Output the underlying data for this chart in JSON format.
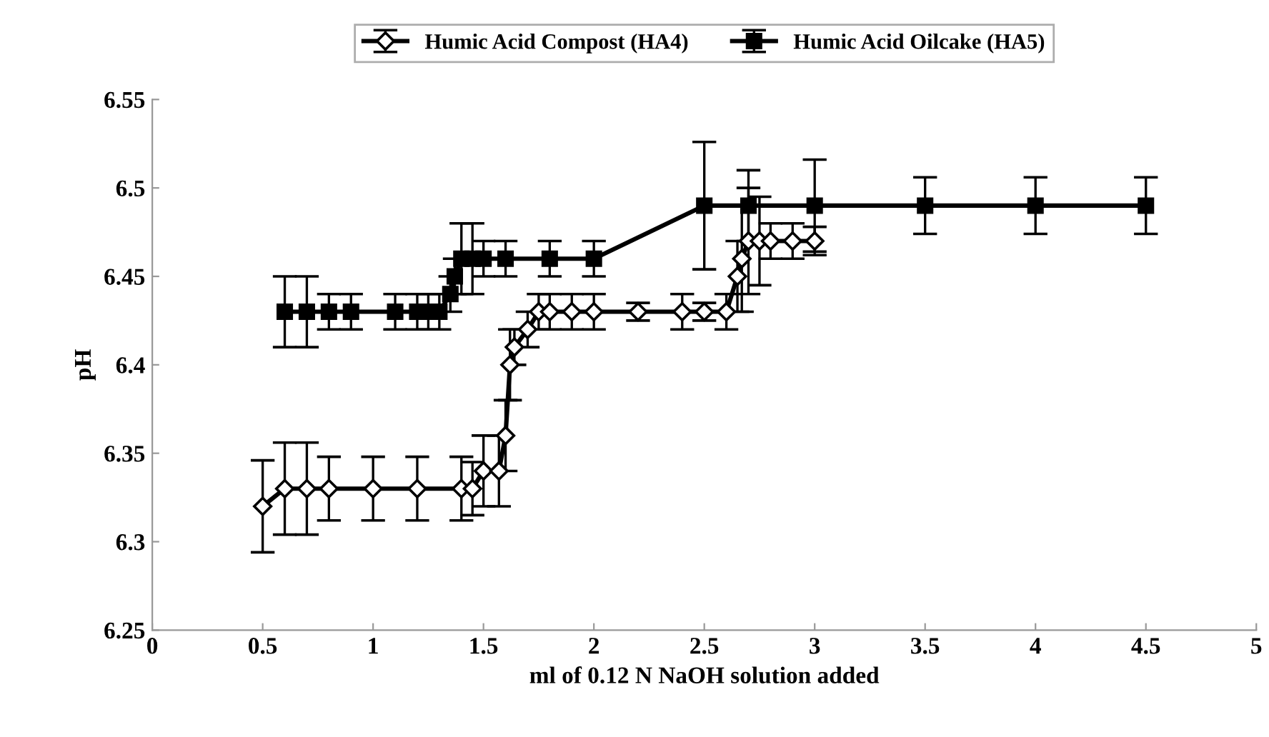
{
  "chart_data": {
    "type": "line",
    "xlabel": "ml of 0.12 N NaOH solution added",
    "ylabel": "pH",
    "xlim": [
      0,
      5
    ],
    "xticks": [
      0,
      0.5,
      1,
      1.5,
      2,
      2.5,
      3,
      3.5,
      4,
      4.5,
      5
    ],
    "ylim": [
      6.25,
      6.55
    ],
    "yticks": [
      6.25,
      6.3,
      6.35,
      6.4,
      6.45,
      6.5,
      6.55
    ],
    "grid": false,
    "legend": "top",
    "line_style": "solid",
    "series": [
      {
        "name": "Humic Acid Compost (HA4)",
        "color": "#000000",
        "marker": "diamond",
        "x": [
          0.5,
          0.6,
          0.7,
          0.8,
          1.0,
          1.2,
          1.4,
          1.45,
          1.5,
          1.57,
          1.6,
          1.62,
          1.64,
          1.7,
          1.75,
          1.8,
          1.9,
          2.0,
          2.2,
          2.4,
          2.5,
          2.6,
          2.65,
          2.67,
          2.7,
          2.75,
          2.8,
          2.9,
          3.0
        ],
        "values": [
          6.32,
          6.33,
          6.33,
          6.33,
          6.33,
          6.33,
          6.33,
          6.33,
          6.34,
          6.34,
          6.36,
          6.4,
          6.41,
          6.42,
          6.43,
          6.43,
          6.43,
          6.43,
          6.43,
          6.43,
          6.43,
          6.43,
          6.45,
          6.46,
          6.47,
          6.47,
          6.47,
          6.47,
          6.47
        ],
        "errors": [
          0.026,
          0.026,
          0.026,
          0.018,
          0.018,
          0.018,
          0.018,
          0.015,
          0.02,
          0.02,
          0.02,
          0.02,
          0.01,
          0.01,
          0.01,
          0.01,
          0.01,
          0.01,
          0.005,
          0.01,
          0.005,
          0.01,
          0.02,
          0.03,
          0.03,
          0.025,
          0.01,
          0.01,
          0.008
        ]
      },
      {
        "name": "Humic Acid Oilcake (HA5)",
        "color": "#000000",
        "marker": "square",
        "x": [
          0.6,
          0.7,
          0.8,
          0.9,
          1.1,
          1.2,
          1.25,
          1.3,
          1.35,
          1.37,
          1.4,
          1.45,
          1.5,
          1.6,
          1.8,
          2.0,
          2.5,
          2.7,
          3.0,
          3.5,
          4.0,
          4.5
        ],
        "values": [
          6.43,
          6.43,
          6.43,
          6.43,
          6.43,
          6.43,
          6.43,
          6.43,
          6.44,
          6.45,
          6.46,
          6.46,
          6.46,
          6.46,
          6.46,
          6.46,
          6.49,
          6.49,
          6.49,
          6.49,
          6.49,
          6.49
        ],
        "errors": [
          0.02,
          0.02,
          0.01,
          0.01,
          0.01,
          0.01,
          0.01,
          0.01,
          0.01,
          0.01,
          0.02,
          0.02,
          0.01,
          0.01,
          0.01,
          0.01,
          0.036,
          0.02,
          0.026,
          0.016,
          0.016,
          0.016
        ]
      }
    ]
  }
}
